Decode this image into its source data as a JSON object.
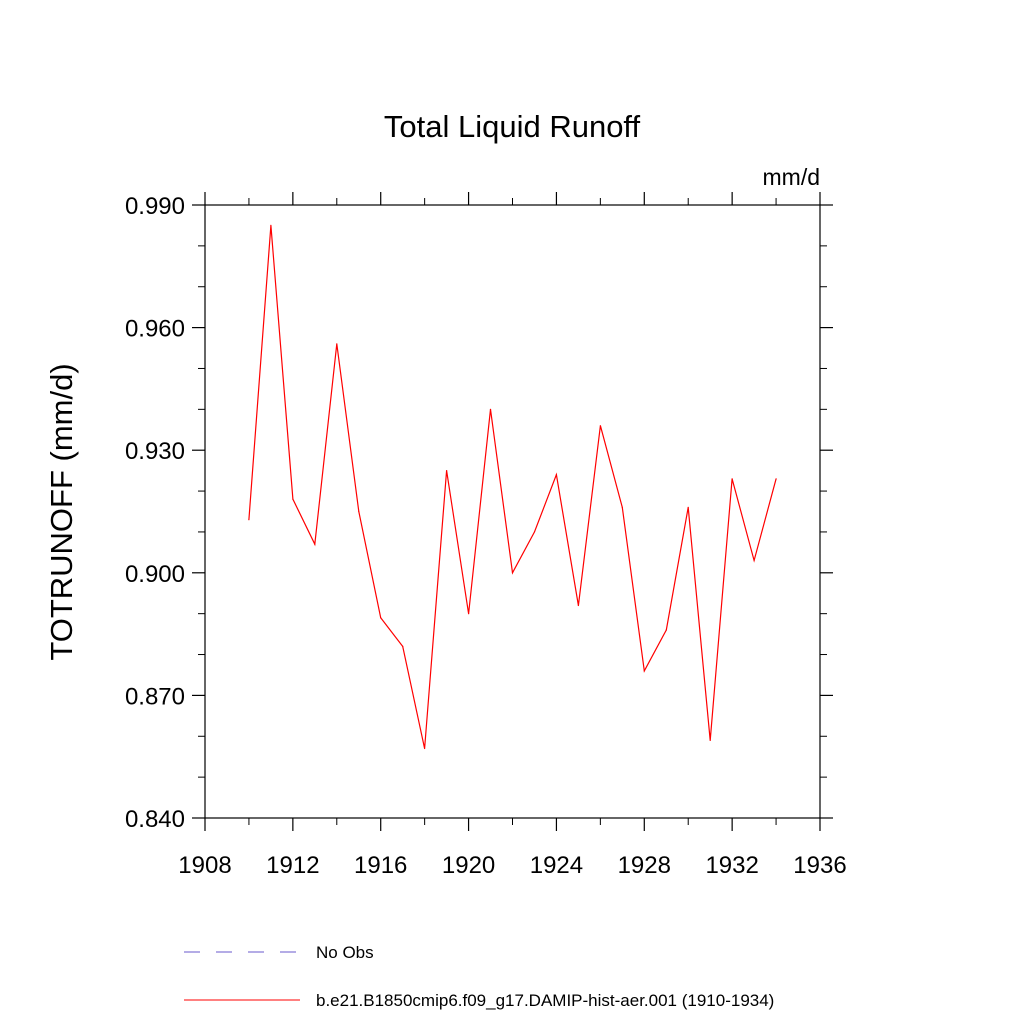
{
  "chart_data": {
    "type": "line",
    "title": "Total Liquid Runoff",
    "units_label": "mm/d",
    "ylabel": "TOTRUNOFF  (mm/d)",
    "xlabel": "",
    "xlim": [
      1908,
      1936
    ],
    "ylim": [
      0.84,
      0.99
    ],
    "x_ticks": [
      1908,
      1912,
      1916,
      1920,
      1924,
      1928,
      1932,
      1936
    ],
    "x_tick_labels": [
      "1908",
      "1912",
      "1916",
      "1920",
      "1924",
      "1928",
      "1932",
      "1936"
    ],
    "y_ticks": [
      0.84,
      0.87,
      0.9,
      0.93,
      0.96,
      0.99
    ],
    "y_tick_labels": [
      "0.840",
      "0.870",
      "0.900",
      "0.930",
      "0.960",
      "0.990"
    ],
    "grid": false,
    "legend_position": "bottom",
    "series": [
      {
        "name": "No Obs",
        "color": "#6a5acd",
        "dash": "dashed",
        "x": [],
        "y": []
      },
      {
        "name": "b.e21.B1850cmip6.f09_g17.DAMIP-hist-aer.001 (1910-1934)",
        "color": "#ff0000",
        "dash": "solid",
        "x": [
          1910,
          1911,
          1912,
          1913,
          1914,
          1915,
          1916,
          1917,
          1918,
          1919,
          1920,
          1921,
          1922,
          1923,
          1924,
          1925,
          1926,
          1927,
          1928,
          1929,
          1930,
          1931,
          1932,
          1933,
          1934
        ],
        "y": [
          0.913,
          0.985,
          0.918,
          0.907,
          0.956,
          0.915,
          0.889,
          0.882,
          0.857,
          0.925,
          0.89,
          0.94,
          0.9,
          0.91,
          0.924,
          0.892,
          0.936,
          0.916,
          0.876,
          0.886,
          0.916,
          0.859,
          0.923,
          0.903,
          0.923
        ]
      }
    ]
  }
}
